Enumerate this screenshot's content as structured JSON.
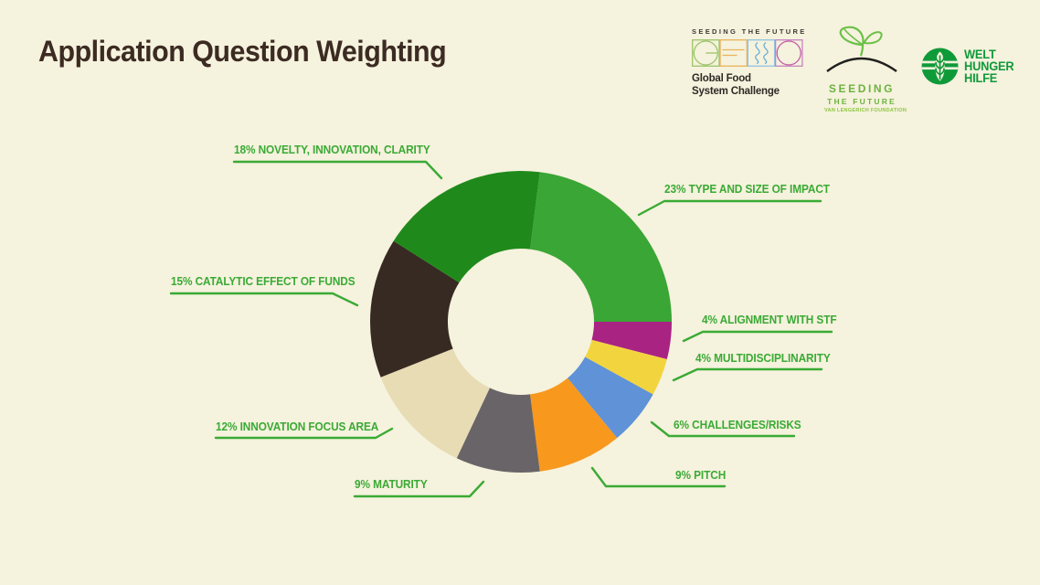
{
  "page": {
    "title": "Application Question Weighting",
    "background_color": "#f5f2dd",
    "title_color": "#3c2b23"
  },
  "logos": {
    "gfsc": {
      "tagline": "SEEDING THE FUTURE",
      "letters": [
        "G",
        "F",
        "S",
        "C"
      ],
      "letter_colors": [
        "#9cc46a",
        "#e9b25c",
        "#6aaed6",
        "#c35fa8"
      ],
      "name_line1": "Global Food",
      "name_line2": "System Challenge"
    },
    "stf": {
      "line1": "SEEDING",
      "line2": "THE FUTURE",
      "line3": "VAN LENGERICH FOUNDATION",
      "green": "#6db33f"
    },
    "whh": {
      "line1": "WELT",
      "line2": "HUNGER",
      "line3": "HILFE",
      "green": "#0f9a3a"
    }
  },
  "chart_data": {
    "type": "pie",
    "subtype": "donut",
    "title": "Application Question Weighting",
    "legend_position": "around",
    "grid": false,
    "start_angle_deg": 7.2,
    "inner_radius_ratio": 0.485,
    "label_color": "#3aaa35",
    "categories": [
      "Type and Size of Impact",
      "Alignment with STF",
      "Multidisciplinarity",
      "Challenges/Risks",
      "Pitch",
      "Maturity",
      "Innovation Focus Area",
      "Catalytic Effect of Funds",
      "Novelty, Innovation, Clarity"
    ],
    "values": [
      23,
      4,
      4,
      6,
      9,
      9,
      12,
      15,
      18
    ],
    "segments": [
      {
        "label": "23% TYPE AND SIZE OF IMPACT",
        "name": "type-and-size-of-impact",
        "value": 23,
        "color": "#3aa635"
      },
      {
        "label": "4% ALIGNMENT WITH STF",
        "name": "alignment-with-stf",
        "value": 4,
        "color": "#a92383"
      },
      {
        "label": "4% MULTIDISCIPLINARITY",
        "name": "multidisciplinarity",
        "value": 4,
        "color": "#f2d53e"
      },
      {
        "label": "6% CHALLENGES/RISKS",
        "name": "challenges-risks",
        "value": 6,
        "color": "#6092d8"
      },
      {
        "label": "9% PITCH",
        "name": "pitch",
        "value": 9,
        "color": "#f8981d"
      },
      {
        "label": "9% MATURITY",
        "name": "maturity",
        "value": 9,
        "color": "#686467"
      },
      {
        "label": "12% INNOVATION FOCUS AREA",
        "name": "innovation-focus-area",
        "value": 12,
        "color": "#e8dcb5"
      },
      {
        "label": "15% CATALYTIC EFFECT OF FUNDS",
        "name": "catalytic-effect-of-funds",
        "value": 15,
        "color": "#372a22"
      },
      {
        "label": "18% NOVELTY, INNOVATION, CLARITY",
        "name": "novelty-innovation-clarity",
        "value": 18,
        "color": "#1f8a1b"
      }
    ]
  }
}
